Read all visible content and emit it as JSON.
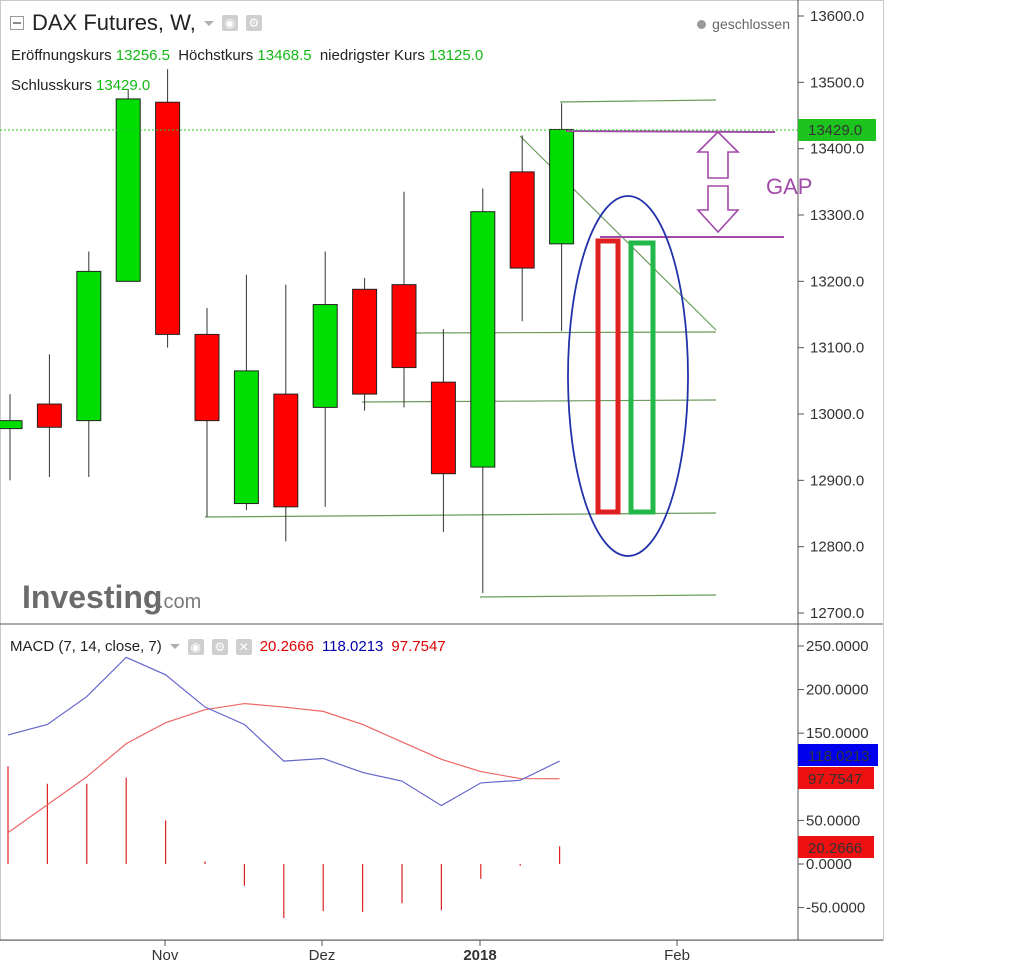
{
  "header": {
    "title": "DAX Futures, W,",
    "status": "geschlossen",
    "ohlc": [
      {
        "label": "Eröffnungskurs",
        "value": "13256.5"
      },
      {
        "label": "Höchstkurs",
        "value": "13468.5"
      },
      {
        "label": "niedrigster Kurs",
        "value": "13125.0"
      },
      {
        "label": "Schlusskurs",
        "value": "13429.0"
      }
    ],
    "macd_label": "MACD (7, 14, close, 7)",
    "macd_hist": "20.2666",
    "macd_line": "118.0213",
    "macd_signal": "97.7547"
  },
  "logo": {
    "brand": "Investing",
    "suffix": ".com"
  },
  "annotations": {
    "gap_label": "GAP"
  },
  "colors": {
    "up": "#00dd00",
    "down": "#ff0000",
    "price_line": "#22cc22",
    "macd_line": "#6666cc",
    "signal_line": "#ee6666",
    "hist": "#dd2222",
    "annotation": "#a24aa8",
    "ellipse": "#2233aa"
  },
  "chart_data": [
    {
      "type": "candlestick",
      "title": "DAX Futures, W,",
      "x_ticks": [
        "Nov",
        "Dez",
        "2018",
        "Feb"
      ],
      "y_ticks": [
        "12700.0",
        "12800.0",
        "12900.0",
        "13000.0",
        "13100.0",
        "13200.0",
        "13300.0",
        "13400.0",
        "13500.0",
        "13600.0"
      ],
      "ylim": [
        12680,
        13650
      ],
      "last_price": "13429.0",
      "candles": [
        {
          "o": 12978,
          "h": 13030,
          "l": 12900,
          "c": 12990
        },
        {
          "o": 13015,
          "h": 13090,
          "l": 12905,
          "c": 12980
        },
        {
          "o": 12990,
          "h": 13245,
          "l": 12905,
          "c": 13215
        },
        {
          "o": 13200,
          "h": 13490,
          "l": 13200,
          "c": 13475
        },
        {
          "o": 13470,
          "h": 13520,
          "l": 13100,
          "c": 13120
        },
        {
          "o": 13120,
          "h": 13160,
          "l": 12845,
          "c": 12990
        },
        {
          "o": 12865,
          "h": 13210,
          "l": 12855,
          "c": 13065
        },
        {
          "o": 13030,
          "h": 13195,
          "l": 12808,
          "c": 12860
        },
        {
          "o": 13010,
          "h": 13245,
          "l": 12860,
          "c": 13165
        },
        {
          "o": 13188,
          "h": 13205,
          "l": 13005,
          "c": 13030
        },
        {
          "o": 13195,
          "h": 13335,
          "l": 13010,
          "c": 13070
        },
        {
          "o": 13048,
          "h": 13128,
          "l": 12822,
          "c": 12910
        },
        {
          "o": 12920,
          "h": 13340,
          "l": 12730,
          "c": 13305
        },
        {
          "o": 13365,
          "h": 13420,
          "l": 13140,
          "c": 13220
        },
        {
          "o": 13256.5,
          "h": 13468.5,
          "l": 13125,
          "c": 13429
        }
      ]
    },
    {
      "type": "line",
      "title": "MACD (7, 14, close, 7)",
      "y_ticks": [
        "-50.0000",
        "0.0000",
        "50.0000",
        "100.0000",
        "150.0000",
        "200.0000",
        "250.0000"
      ],
      "ylim": [
        -85,
        262
      ],
      "series": [
        {
          "name": "MACD",
          "values": [
            148,
            160,
            192,
            237,
            217,
            180,
            160,
            118,
            121,
            105,
            95,
            67,
            93,
            96,
            118.0213
          ]
        },
        {
          "name": "Signal",
          "values": [
            36,
            68,
            100,
            138,
            162,
            177,
            184,
            180,
            175,
            160,
            140,
            120,
            106,
            98,
            97.7547
          ]
        },
        {
          "name": "Histogram",
          "values": [
            112,
            92,
            92,
            99,
            50,
            3,
            -25,
            -62,
            -54,
            -55,
            -45,
            -53,
            -17,
            -2,
            20.2666
          ]
        }
      ]
    }
  ]
}
